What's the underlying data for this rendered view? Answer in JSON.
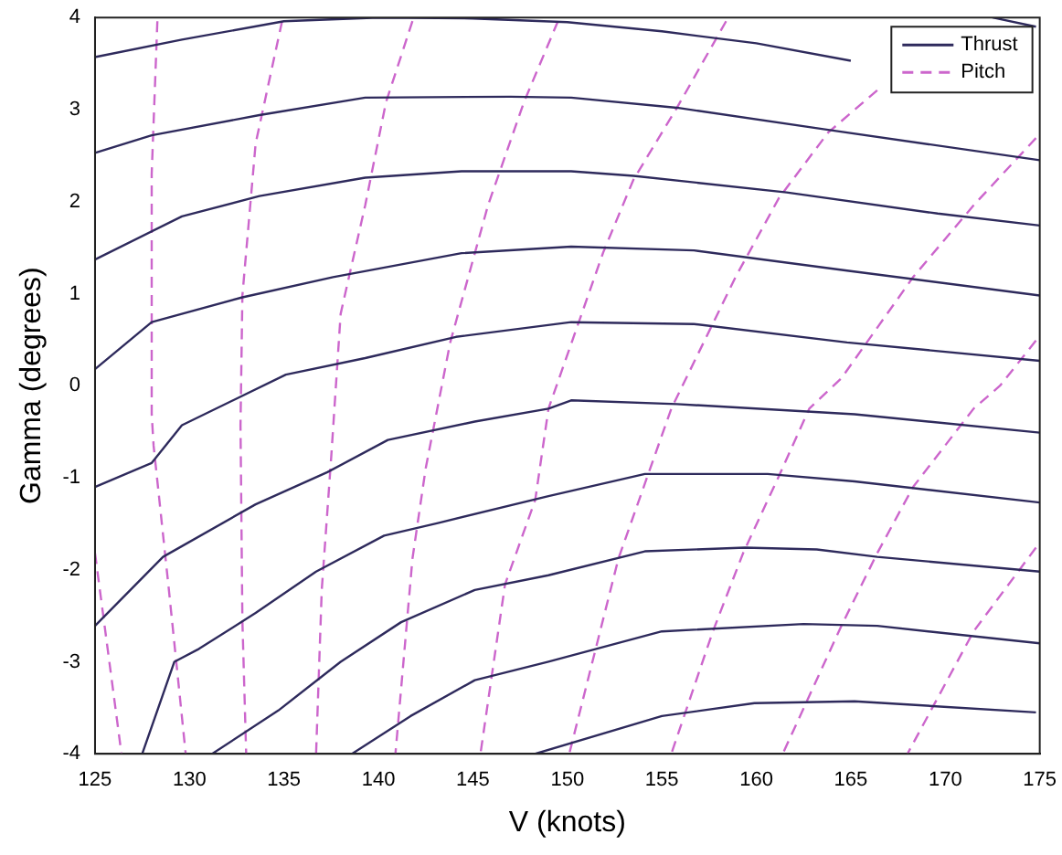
{
  "chart_data": {
    "type": "line",
    "xlabel": "V (knots)",
    "ylabel": "Gamma (degrees)",
    "xlim": [
      125,
      175
    ],
    "ylim": [
      -4,
      4
    ],
    "xticks": [
      125,
      130,
      135,
      140,
      145,
      150,
      155,
      160,
      165,
      170,
      175
    ],
    "yticks": [
      -4,
      -3,
      -2,
      -1,
      0,
      1,
      2,
      3,
      4
    ],
    "grid": false,
    "legend": "top right",
    "marker": "none",
    "series": [
      {
        "name": "Thrust",
        "color": "#2e2a5c",
        "line_style": "solid",
        "x": [
          125,
          129.6,
          135,
          140,
          145,
          150,
          155,
          160,
          165
        ],
        "values": [
          3.57,
          3.76,
          3.96,
          4.0,
          3.99,
          3.95,
          3.85,
          3.72,
          3.53
        ]
      },
      {
        "color": "#2e2a5c",
        "line_style": "solid",
        "x": [
          172.5,
          174.8
        ],
        "values": [
          4.0,
          3.9
        ]
      },
      {
        "color": "#2e2a5c",
        "line_style": "solid",
        "x": [
          125,
          128,
          133.7,
          139.3,
          147,
          150.2,
          155.8,
          163.8,
          175
        ],
        "values": [
          2.53,
          2.72,
          2.94,
          3.13,
          3.14,
          3.13,
          3.02,
          2.78,
          2.45
        ]
      },
      {
        "color": "#2e2a5c",
        "line_style": "solid",
        "x": [
          125,
          129.6,
          133.7,
          139.3,
          144.4,
          150.2,
          153.5,
          161.6,
          169.6,
          175
        ],
        "values": [
          1.37,
          1.84,
          2.06,
          2.26,
          2.33,
          2.33,
          2.28,
          2.1,
          1.87,
          1.74
        ]
      },
      {
        "color": "#2e2a5c",
        "line_style": "solid",
        "x": [
          125,
          128,
          132.8,
          137.6,
          144.4,
          150.2,
          156.7,
          164.8,
          175
        ],
        "values": [
          0.18,
          0.69,
          0.96,
          1.18,
          1.44,
          1.51,
          1.47,
          1.25,
          0.98
        ]
      },
      {
        "color": "#2e2a5c",
        "line_style": "solid",
        "x": [
          125,
          128,
          129.6,
          135.1,
          139.3,
          144.1,
          150.2,
          156.7,
          164.8,
          175
        ],
        "values": [
          -1.1,
          -0.84,
          -0.43,
          0.12,
          0.3,
          0.53,
          0.69,
          0.67,
          0.47,
          0.27
        ]
      },
      {
        "color": "#2e2a5c",
        "line_style": "solid",
        "x": [
          125,
          128.6,
          133.5,
          137.3,
          140.5,
          145.1,
          149,
          150.2,
          155.8,
          165.2,
          175
        ],
        "values": [
          -2.61,
          -1.86,
          -1.29,
          -0.94,
          -0.59,
          -0.39,
          -0.25,
          -0.16,
          -0.2,
          -0.31,
          -0.51
        ]
      },
      {
        "color": "#2e2a5c",
        "line_style": "solid",
        "x": [
          127.5,
          129.2,
          130.5,
          133.5,
          136.7,
          140.3,
          143.2,
          149,
          154.1,
          160.6,
          165.2,
          175
        ],
        "values": [
          -4,
          -3.0,
          -2.86,
          -2.47,
          -2.02,
          -1.63,
          -1.49,
          -1.2,
          -0.96,
          -0.96,
          -1.04,
          -1.27
        ]
      },
      {
        "color": "#2e2a5c",
        "line_style": "solid",
        "x": [
          131.2,
          134.7,
          138,
          141.2,
          145.1,
          149,
          154.1,
          159.4,
          163.2,
          166.4,
          175
        ],
        "values": [
          -4,
          -3.53,
          -3.0,
          -2.57,
          -2.22,
          -2.06,
          -1.8,
          -1.76,
          -1.78,
          -1.86,
          -2.02
        ]
      },
      {
        "color": "#2e2a5c",
        "line_style": "solid",
        "x": [
          138.6,
          141.7,
          145.1,
          149,
          155,
          162.5,
          166.4,
          175
        ],
        "values": [
          -4,
          -3.59,
          -3.2,
          -3.0,
          -2.67,
          -2.59,
          -2.61,
          -2.8
        ]
      },
      {
        "color": "#2e2a5c",
        "line_style": "solid",
        "x": [
          148.3,
          155,
          159.9,
          165.2,
          174.8
        ],
        "values": [
          -4,
          -3.59,
          -3.45,
          -3.43,
          -3.55
        ]
      },
      {
        "name": "Pitch",
        "color": "#cc66cc",
        "line_style": "dashed",
        "x": [
          125,
          126.4
        ],
        "values": [
          -1.82,
          -4
        ]
      },
      {
        "color": "#cc66cc",
        "line_style": "dashed",
        "x": [
          128.3,
          128,
          128,
          128.1,
          128.9,
          129.8
        ],
        "values": [
          3.96,
          2.3,
          -0.31,
          -0.65,
          -2.2,
          -4
        ]
      },
      {
        "color": "#cc66cc",
        "line_style": "dashed",
        "x": [
          134.9,
          133.5,
          132.8,
          132.7,
          132.8,
          133
        ],
        "values": [
          3.96,
          2.63,
          0.98,
          -0.43,
          -2.55,
          -4
        ]
      },
      {
        "color": "#cc66cc",
        "line_style": "dashed",
        "x": [
          141.8,
          140.4,
          139.3,
          138,
          137.5,
          137,
          136.7
        ],
        "values": [
          3.96,
          3.08,
          1.96,
          0.78,
          -0.78,
          -2.22,
          -4
        ]
      },
      {
        "color": "#cc66cc",
        "line_style": "dashed",
        "x": [
          149.5,
          147.7,
          145.8,
          143.8,
          142.5,
          141.8,
          140.9
        ],
        "values": [
          3.96,
          3.08,
          1.96,
          0.47,
          -0.9,
          -1.88,
          -4
        ]
      },
      {
        "color": "#cc66cc",
        "line_style": "dashed",
        "x": [
          158.4,
          155.8,
          153.5,
          151.9,
          149,
          148.3,
          146.7,
          145.4
        ],
        "values": [
          3.96,
          3.02,
          2.24,
          1.45,
          -0.25,
          -1.24,
          -2.16,
          -4
        ]
      },
      {
        "color": "#cc66cc",
        "line_style": "dashed",
        "x": [
          166.4,
          163.8,
          161.2,
          158.9,
          155.5,
          152.7,
          150.1
        ],
        "values": [
          3.21,
          2.75,
          2.04,
          1.18,
          -0.25,
          -1.88,
          -4
        ]
      },
      {
        "color": "#cc66cc",
        "line_style": "dashed",
        "x": [
          174.8,
          171.5,
          168.3,
          164.5,
          162.8,
          161.2,
          159.3,
          157.7,
          155.5
        ],
        "values": [
          2.69,
          1.96,
          1.18,
          0.08,
          -0.25,
          -0.98,
          -1.82,
          -2.67,
          -4
        ]
      },
      {
        "color": "#cc66cc",
        "line_style": "dashed",
        "x": [
          174.8,
          172.9,
          171.5,
          168.3,
          166.4,
          164.5,
          161.4
        ],
        "values": [
          0.49,
          0.0,
          -0.25,
          -1.1,
          -1.82,
          -2.61,
          -4
        ]
      },
      {
        "color": "#cc66cc",
        "line_style": "dashed",
        "x": [
          174.8,
          171.5,
          168
        ],
        "values": [
          -1.76,
          -2.67,
          -4
        ]
      }
    ]
  }
}
